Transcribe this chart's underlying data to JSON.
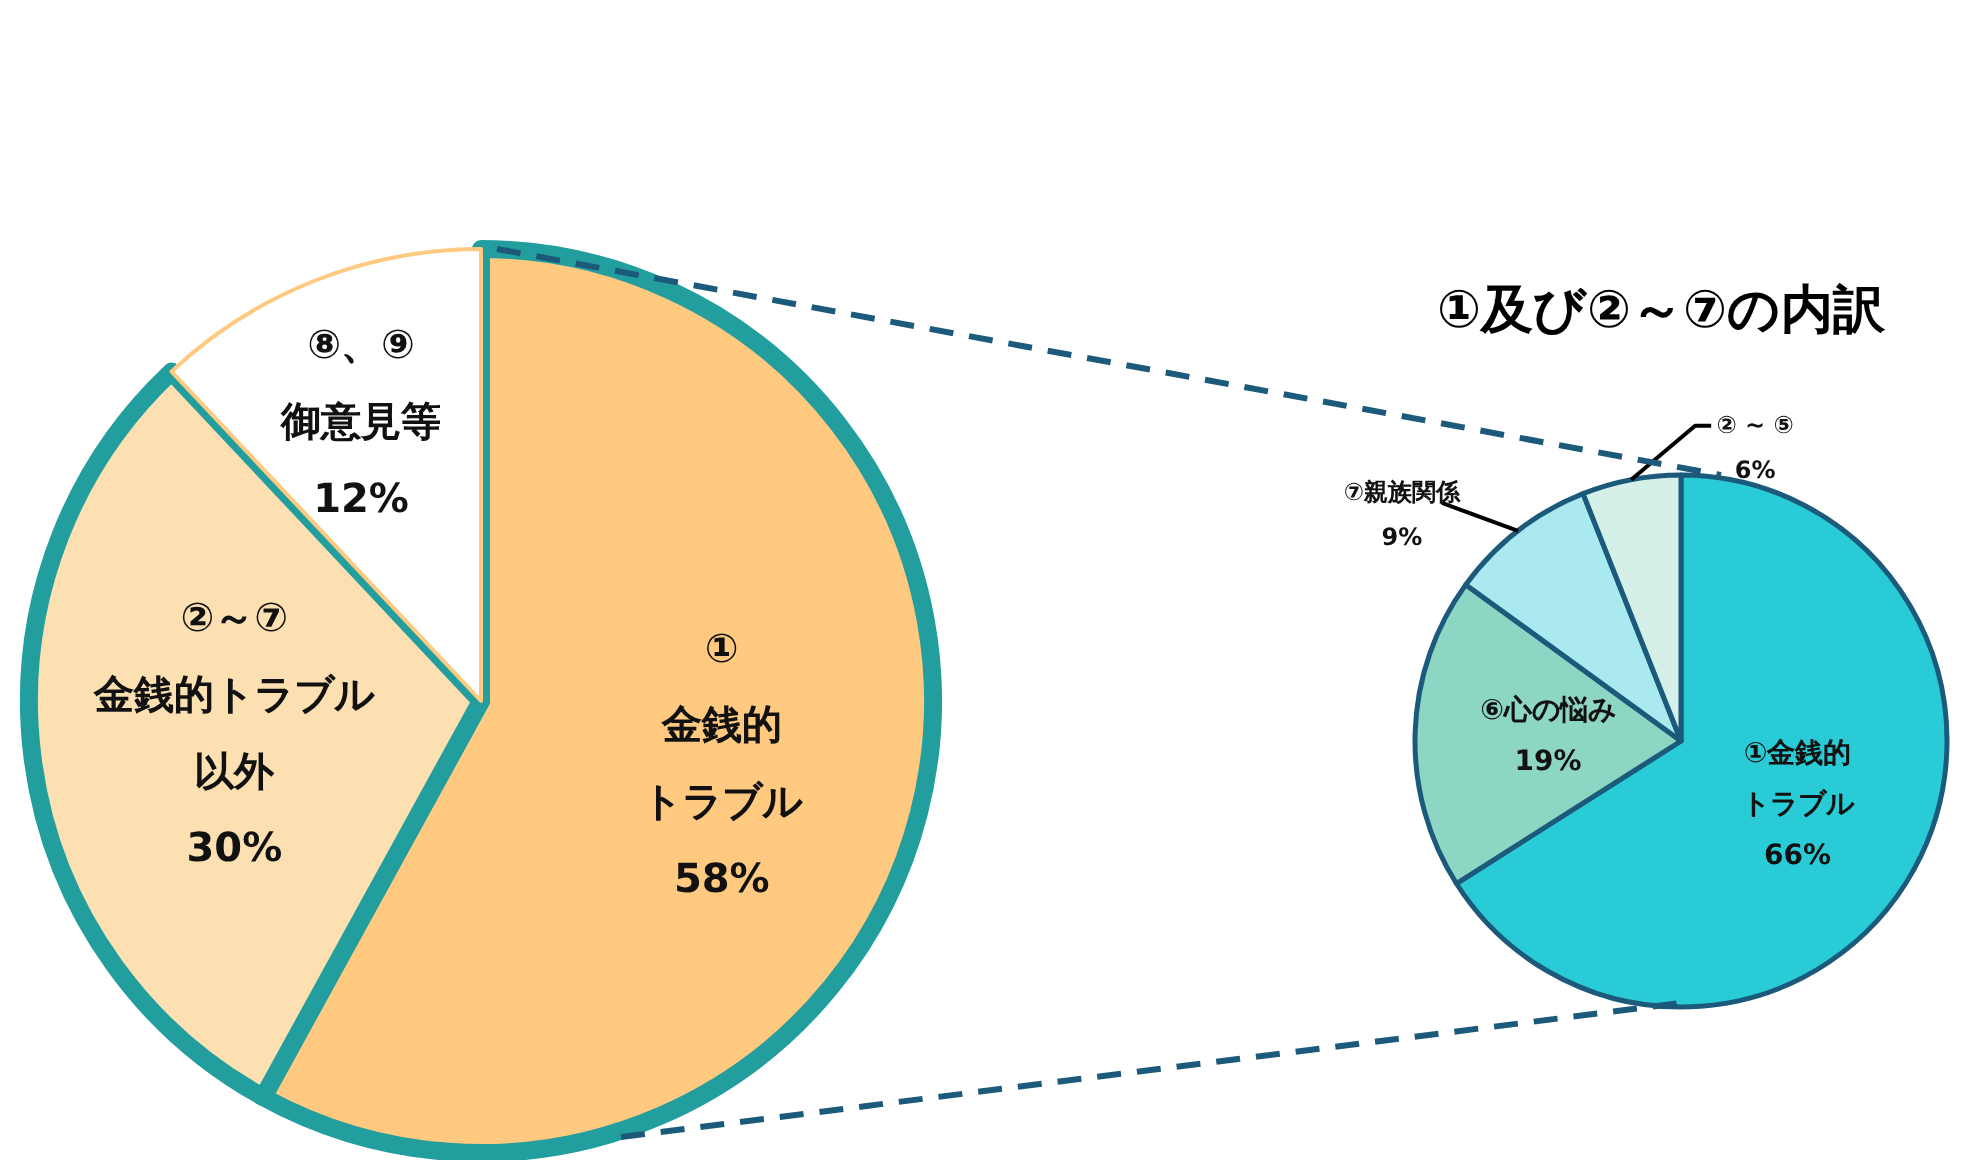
{
  "chart_data": [
    {
      "type": "pie",
      "categories": [
        "①金銭的トラブル",
        "②～⑦金銭的トラブル以外",
        "⑧、⑨御意見等"
      ],
      "values": [
        58,
        30,
        12
      ],
      "colors": [
        "#ffc97f",
        "#fde0b2",
        "#ffffff"
      ],
      "value_labels": [
        "58%",
        "30%",
        "12%"
      ]
    },
    {
      "type": "pie",
      "title": "①及び②～⑦の内訳",
      "categories": [
        "①金銭的トラブル",
        "⑥心の悩み",
        "⑦親族関係",
        "② ~ ⑤"
      ],
      "values": [
        66,
        19,
        9,
        6
      ],
      "colors": [
        "#29ccd6",
        "#8dd6c3",
        "#a9e9ef",
        "#d5efe9"
      ],
      "value_labels": [
        "66%",
        "19%",
        "9%",
        "6%"
      ]
    }
  ]
}
